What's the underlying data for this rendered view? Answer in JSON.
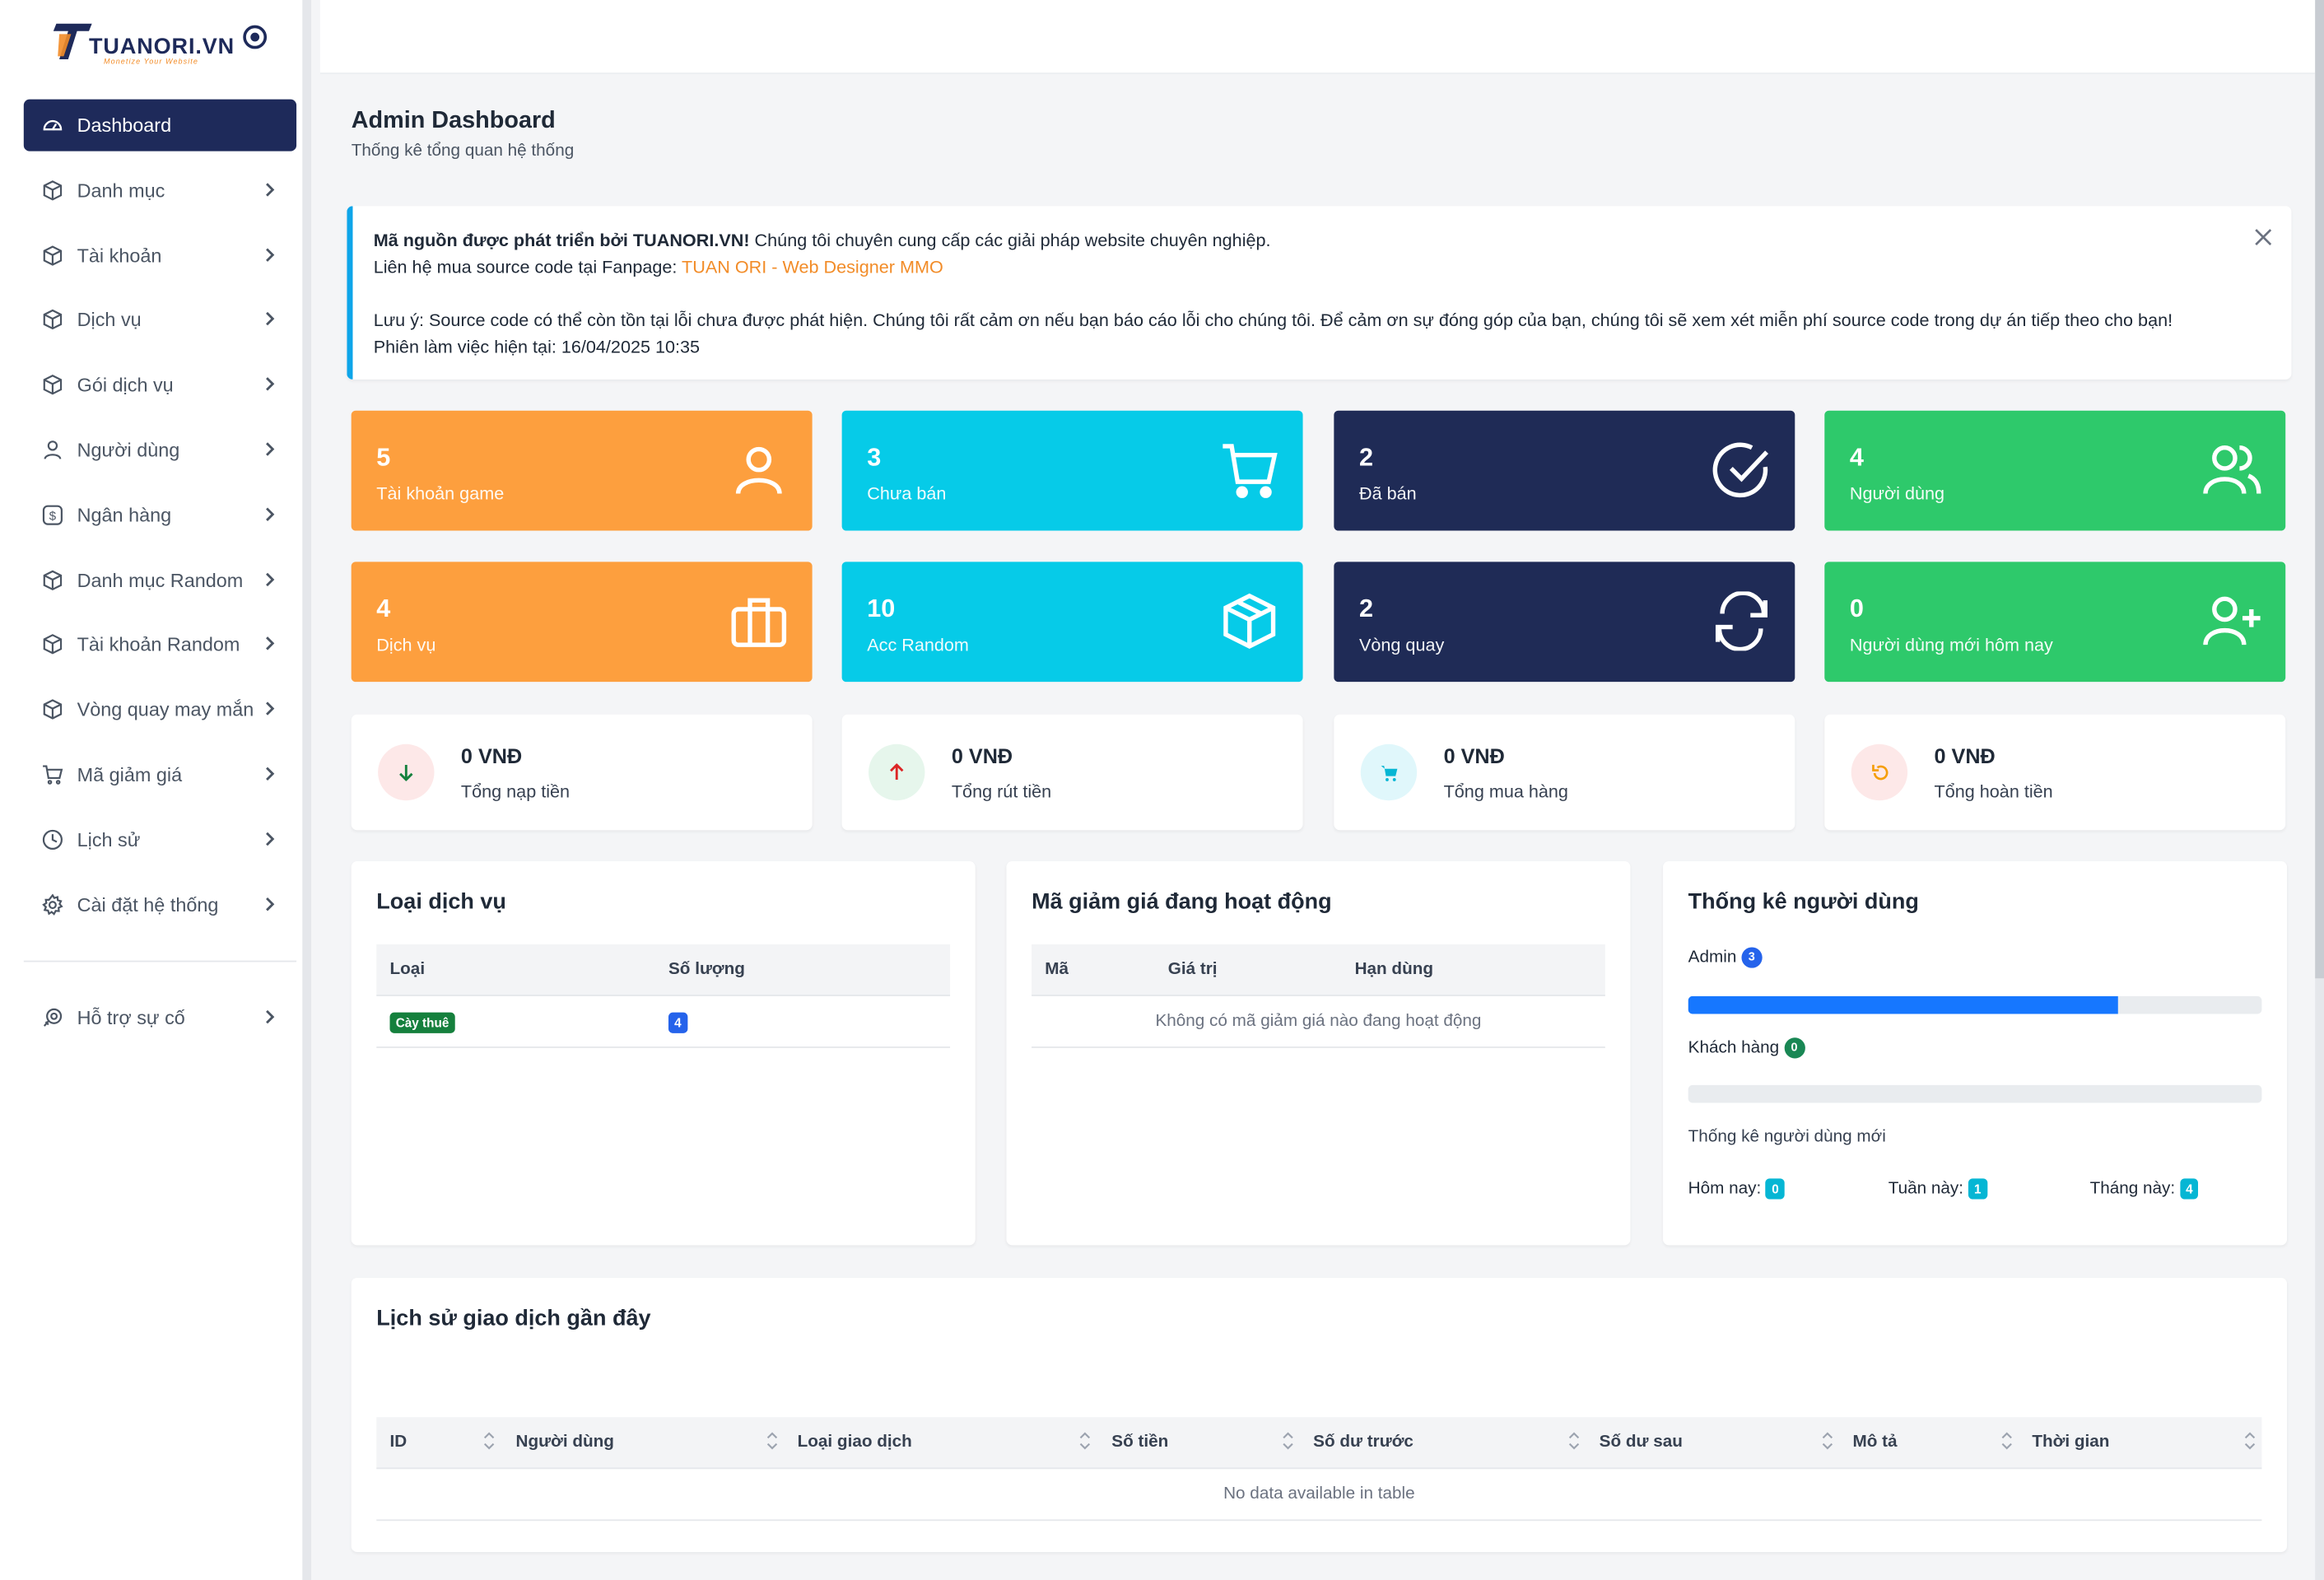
{
  "brand": {
    "name": "TUANORI.VN",
    "tagline": "Monetize Your Website"
  },
  "sidebar": {
    "items": [
      {
        "label": "Dashboard",
        "icon": "dashboard-icon",
        "active": true
      },
      {
        "label": "Danh mục",
        "icon": "box-icon"
      },
      {
        "label": "Tài khoản",
        "icon": "box-icon"
      },
      {
        "label": "Dịch vụ",
        "icon": "box-icon"
      },
      {
        "label": "Gói dịch vụ",
        "icon": "box-icon"
      },
      {
        "label": "Người dùng",
        "icon": "user-icon"
      },
      {
        "label": "Ngân hàng",
        "icon": "dollar-icon"
      },
      {
        "label": "Danh mục Random",
        "icon": "box-icon"
      },
      {
        "label": "Tài khoản Random",
        "icon": "box-icon"
      },
      {
        "label": "Vòng quay may mắn",
        "icon": "box-icon"
      },
      {
        "label": "Mã giảm giá",
        "icon": "cart-icon"
      },
      {
        "label": "Lịch sử",
        "icon": "clock-icon"
      },
      {
        "label": "Cài đặt hệ thống",
        "icon": "gear-icon"
      }
    ],
    "support": {
      "label": "Hỗ trợ sự cố",
      "icon": "support-icon"
    }
  },
  "header": {
    "title": "Admin Dashboard",
    "subtitle": "Thống kê tổng quan hệ thống"
  },
  "notice": {
    "bold": "Mã nguồn được phát triển bởi TUANORI.VN!",
    "line1_rest": " Chúng tôi chuyên cung cấp các giải pháp website chuyên nghiệp.",
    "line2_prefix": "Liên hệ mua source code tại Fanpage: ",
    "line2_link": "TUAN ORI - Web Designer MMO",
    "line3": "Lưu ý: Source code có thể còn tồn tại lỗi chưa được phát hiện. Chúng tôi rất cảm ơn nếu bạn báo cáo lỗi cho chúng tôi. Để cảm ơn sự đóng góp của bạn, chúng tôi sẽ xem xét miễn phí source code trong dự án tiếp theo cho bạn!",
    "line4": "Phiên làm việc hiện tại: 16/04/2025 10:35"
  },
  "stats": [
    {
      "value": "5",
      "label": "Tài khoản game",
      "color": "#fd9f3e",
      "icon": "user-icon"
    },
    {
      "value": "3",
      "label": "Chưa bán",
      "color": "#06cbe8",
      "icon": "cart-icon"
    },
    {
      "value": "2",
      "label": "Đã bán",
      "color": "#1f2b56",
      "icon": "check-circle-icon"
    },
    {
      "value": "4",
      "label": "Người dùng",
      "color": "#2ec96b",
      "icon": "users-icon"
    },
    {
      "value": "4",
      "label": "Dịch vụ",
      "color": "#fd9f3e",
      "icon": "briefcase-icon"
    },
    {
      "value": "10",
      "label": "Acc Random",
      "color": "#06cbe8",
      "icon": "package-icon"
    },
    {
      "value": "2",
      "label": "Vòng quay",
      "color": "#1f2b56",
      "icon": "refresh-icon"
    },
    {
      "value": "0",
      "label": "Người dùng mới hôm nay",
      "color": "#2ec96b",
      "icon": "user-plus-icon"
    }
  ],
  "finance": [
    {
      "amount": "0 VNĐ",
      "label": "Tổng nạp tiền",
      "icon": "arrow-down-icon"
    },
    {
      "amount": "0 VNĐ",
      "label": "Tổng rút tiền",
      "icon": "arrow-up-icon"
    },
    {
      "amount": "0 VNĐ",
      "label": "Tổng mua hàng",
      "icon": "cart-icon"
    },
    {
      "amount": "0 VNĐ",
      "label": "Tổng hoàn tiền",
      "icon": "undo-icon"
    }
  ],
  "service_types": {
    "title": "Loại dịch vụ",
    "columns": [
      "Loại",
      "Số lượng"
    ],
    "rows": [
      {
        "type": "Cày thuê",
        "count": "4"
      }
    ]
  },
  "coupons": {
    "title": "Mã giảm giá đang hoạt động",
    "columns": [
      "Mã",
      "Giá trị",
      "Hạn dùng"
    ],
    "empty": "Không có mã giảm giá nào đang hoạt động"
  },
  "user_stats": {
    "title": "Thống kê người dùng",
    "admin_label": "Admin",
    "admin_count": "3",
    "admin_fraction": 0.75,
    "customer_label": "Khách hàng",
    "customer_count": "0",
    "customer_fraction": 0,
    "new_title": "Thống kê người dùng mới",
    "today_label": "Hôm nay:",
    "today": "0",
    "week_label": "Tuần này:",
    "week": "1",
    "month_label": "Tháng này:",
    "month": "4"
  },
  "transactions": {
    "title": "Lịch sử giao dịch gần đây",
    "columns": [
      "ID",
      "Người dùng",
      "Loại giao dịch",
      "Số tiền",
      "Số dư trước",
      "Số dư sau",
      "Mô tả",
      "Thời gian"
    ],
    "empty": "No data available in table"
  }
}
